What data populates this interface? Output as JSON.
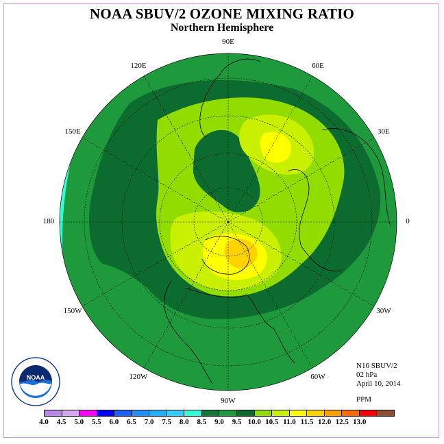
{
  "header": {
    "title": "NOAA SBUV/2 OZONE MIXING RATIO",
    "subtitle": "Northern Hemisphere"
  },
  "longitude_labels": [
    {
      "text": "90E",
      "angle": 90
    },
    {
      "text": "60E",
      "angle": 60
    },
    {
      "text": "30E",
      "angle": 30
    },
    {
      "text": "0",
      "angle": 0
    },
    {
      "text": "30W",
      "angle": -30
    },
    {
      "text": "60W",
      "angle": -60
    },
    {
      "text": "90W",
      "angle": -90
    },
    {
      "text": "120W",
      "angle": -120
    },
    {
      "text": "150W",
      "angle": -150
    },
    {
      "text": "180",
      "angle": 180
    },
    {
      "text": "150E",
      "angle": 150
    },
    {
      "text": "120E",
      "angle": 120
    }
  ],
  "info": {
    "instrument": "N16 SBUV/2",
    "level": "02 hPa",
    "date": "April 10, 2014",
    "units": "PPM"
  },
  "colorbar": {
    "colors": [
      "#b889e6",
      "#d6a8f0",
      "#ff00ff",
      "#0000ff",
      "#1e62ff",
      "#1e90ff",
      "#20b0ff",
      "#33ccff",
      "#33ffd5",
      "#117a3a",
      "#1e9a3c",
      "#0c6b2e",
      "#93dc00",
      "#c8f000",
      "#ffff00",
      "#ffd200",
      "#ffa000",
      "#ff6a00",
      "#ff0000",
      "#8a5030"
    ],
    "labels": [
      "4.0",
      "4.5",
      "5.0",
      "5.5",
      "6.0",
      "6.5",
      "7.0",
      "7.5",
      "8.0",
      "8.5",
      "9.0",
      "9.5",
      "10.0",
      "10.5",
      "11.0",
      "11.5",
      "12.0",
      "12.5",
      "13.0"
    ]
  },
  "map_colors": {
    "outer": "#33ffd5",
    "green_mid": "#1e9a3c",
    "green_dark": "#0c6b2e",
    "green_light": "#93dc00",
    "yellow_green": "#c8f000",
    "yellow": "#ffff00",
    "orange": "#ffd200"
  }
}
